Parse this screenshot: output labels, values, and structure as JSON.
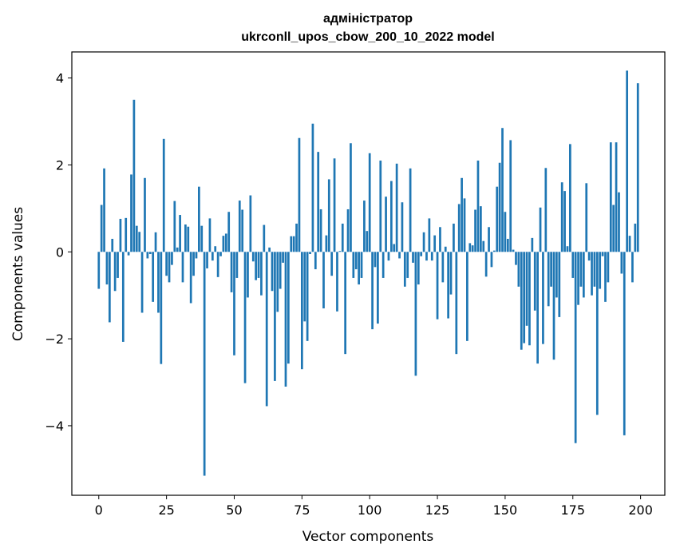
{
  "chart_data": {
    "type": "bar",
    "title_line1": "адміністратор",
    "title_line2": "ukrconll_upos_cbow_200_10_2022 model",
    "xlabel": "Vector components",
    "ylabel": "Components values",
    "xlim": [
      -9.95,
      208.95
    ],
    "ylim": [
      -5.6,
      4.6
    ],
    "xticks": [
      0,
      25,
      50,
      75,
      100,
      125,
      150,
      175,
      200
    ],
    "xtick_labels": [
      "0",
      "25",
      "50",
      "75",
      "100",
      "125",
      "150",
      "175",
      "200"
    ],
    "yticks": [
      -4,
      -2,
      0,
      2,
      4
    ],
    "ytick_labels": [
      "−4",
      "−2",
      "0",
      "2",
      "4"
    ],
    "bar_color": "#1f77b4",
    "grid": false,
    "values": [
      -0.85,
      1.08,
      1.92,
      -0.75,
      -1.62,
      0.3,
      -0.9,
      -0.6,
      0.76,
      -2.07,
      0.78,
      -0.08,
      1.78,
      3.5,
      0.6,
      0.46,
      -1.4,
      1.7,
      -0.15,
      -0.05,
      -1.15,
      0.45,
      -1.4,
      -2.58,
      2.6,
      -0.55,
      -0.7,
      -0.3,
      1.17,
      0.1,
      0.85,
      -0.7,
      0.63,
      0.58,
      -1.18,
      -0.55,
      -0.15,
      1.5,
      0.6,
      -5.15,
      -0.38,
      0.77,
      -0.2,
      0.13,
      -0.58,
      -0.1,
      0.37,
      0.42,
      0.92,
      -0.93,
      -2.38,
      -0.6,
      1.18,
      0.97,
      -3.02,
      -1.05,
      1.3,
      -0.22,
      -0.65,
      -0.6,
      -1.0,
      0.62,
      -3.55,
      0.1,
      -0.9,
      -2.97,
      -1.38,
      -0.85,
      -0.25,
      -3.1,
      -2.57,
      0.36,
      0.36,
      0.65,
      2.62,
      -2.7,
      -1.6,
      -2.05,
      -0.05,
      2.95,
      -0.4,
      2.3,
      0.98,
      -1.3,
      0.38,
      1.67,
      -0.55,
      2.15,
      -1.37,
      0.02,
      0.65,
      -2.35,
      0.98,
      2.5,
      -0.6,
      -0.4,
      -0.75,
      -0.6,
      1.18,
      0.48,
      2.27,
      -1.78,
      -0.35,
      -1.65,
      2.1,
      -0.6,
      1.27,
      -0.2,
      1.63,
      0.18,
      2.03,
      -0.15,
      1.14,
      -0.8,
      -0.6,
      1.92,
      -0.25,
      -2.85,
      -0.75,
      -0.1,
      0.45,
      -0.2,
      0.77,
      -0.2,
      0.38,
      -1.55,
      0.57,
      -0.7,
      0.12,
      -1.53,
      -0.98,
      0.65,
      -2.35,
      1.1,
      1.7,
      1.23,
      -2.05,
      0.2,
      0.15,
      0.97,
      2.1,
      1.05,
      0.25,
      -0.57,
      0.57,
      -0.35,
      0.03,
      1.5,
      2.05,
      2.85,
      0.92,
      0.3,
      2.57,
      0.05,
      -0.3,
      -0.8,
      -2.25,
      -2.1,
      -1.7,
      -2.15,
      0.32,
      -1.35,
      -2.57,
      1.02,
      -2.12,
      1.93,
      -1.25,
      -0.8,
      -2.48,
      -1.05,
      -1.5,
      1.6,
      1.4,
      0.13,
      2.48,
      -0.6,
      -4.4,
      -1.22,
      -0.8,
      -1.05,
      1.58,
      -0.2,
      -1.0,
      -0.8,
      -3.75,
      -0.85,
      -0.1,
      -1.15,
      -0.7,
      2.52,
      1.08,
      2.52,
      1.37,
      -0.5,
      -4.22,
      4.17,
      0.37,
      -0.7,
      0.65,
      3.88
    ]
  }
}
